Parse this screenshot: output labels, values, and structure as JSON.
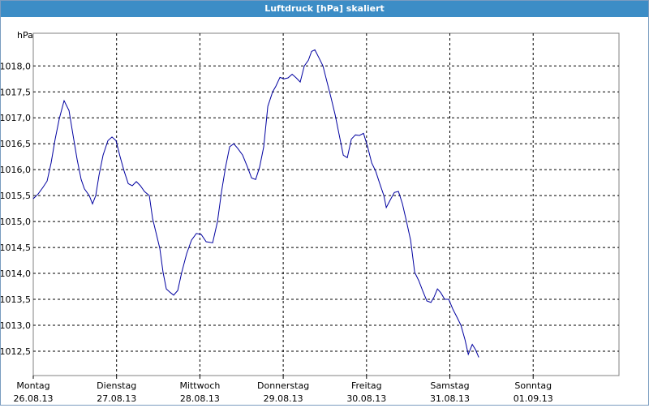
{
  "window_title": "Luftdruck [hPa] skaliert",
  "chart_data": {
    "type": "line",
    "ylabel": "hPa",
    "xlim": [
      0,
      7.03
    ],
    "ylim": [
      1012.03,
      1018.63
    ],
    "grid": true,
    "xticks": [
      {
        "value": 0,
        "label": "Montag",
        "sublabel": "26.08.13"
      },
      {
        "value": 1,
        "label": "Dienstag",
        "sublabel": "27.08.13"
      },
      {
        "value": 2,
        "label": "Mittwoch",
        "sublabel": "28.08.13"
      },
      {
        "value": 3,
        "label": "Donnerstag",
        "sublabel": "29.08.13"
      },
      {
        "value": 4,
        "label": "Freitag",
        "sublabel": "30.08.13"
      },
      {
        "value": 5,
        "label": "Samstag",
        "sublabel": "31.08.13"
      },
      {
        "value": 6,
        "label": "Sonntag",
        "sublabel": "01.09.13"
      }
    ],
    "yticks": [
      {
        "value": 1012.5,
        "label": "1012,5"
      },
      {
        "value": 1013,
        "label": "1013,0"
      },
      {
        "value": 1013.5,
        "label": "1013,5"
      },
      {
        "value": 1014,
        "label": "1014,0"
      },
      {
        "value": 1014.5,
        "label": "1014,5"
      },
      {
        "value": 1015,
        "label": "1015,0"
      },
      {
        "value": 1015.5,
        "label": "1015,5"
      },
      {
        "value": 1016,
        "label": "1016,0"
      },
      {
        "value": 1016.5,
        "label": "1016,5"
      },
      {
        "value": 1017,
        "label": "1017,0"
      },
      {
        "value": 1017.5,
        "label": "1017,5"
      },
      {
        "value": 1018,
        "label": "1018,0"
      }
    ],
    "color": "#0000a0",
    "x": [
      0,
      0.058,
      0.117,
      0.166,
      0.214,
      0.263,
      0.312,
      0.37,
      0.429,
      0.477,
      0.526,
      0.575,
      0.614,
      0.672,
      0.711,
      0.75,
      0.789,
      0.838,
      0.896,
      0.945,
      0.993,
      1.042,
      1.091,
      1.14,
      1.188,
      1.237,
      1.286,
      1.334,
      1.393,
      1.432,
      1.471,
      1.519,
      1.558,
      1.597,
      1.646,
      1.685,
      1.734,
      1.782,
      1.841,
      1.899,
      1.958,
      2.016,
      2.075,
      2.153,
      2.211,
      2.26,
      2.308,
      2.357,
      2.406,
      2.454,
      2.513,
      2.571,
      2.62,
      2.669,
      2.717,
      2.766,
      2.815,
      2.873,
      2.912,
      2.961,
      3.01,
      3.058,
      3.107,
      3.156,
      3.204,
      3.253,
      3.302,
      3.341,
      3.38,
      3.428,
      3.477,
      3.526,
      3.575,
      3.623,
      3.672,
      3.721,
      3.769,
      3.818,
      3.867,
      3.915,
      3.964,
      4.013,
      4.062,
      4.11,
      4.159,
      4.208,
      4.237,
      4.286,
      4.334,
      4.383,
      4.431,
      4.48,
      4.529,
      4.578,
      4.627,
      4.675,
      4.724,
      4.773,
      4.812,
      4.851,
      4.89,
      4.938,
      4.987,
      5.036,
      5.084,
      5.133,
      5.182,
      5.221,
      5.269,
      5.308,
      5.347
    ],
    "values": [
      1015.44,
      1015.53,
      1015.66,
      1015.78,
      1016.13,
      1016.59,
      1016.98,
      1017.33,
      1017.14,
      1016.67,
      1016.2,
      1015.81,
      1015.63,
      1015.5,
      1015.34,
      1015.5,
      1015.89,
      1016.28,
      1016.56,
      1016.63,
      1016.56,
      1016.25,
      1015.97,
      1015.73,
      1015.69,
      1015.77,
      1015.69,
      1015.58,
      1015.5,
      1015.06,
      1014.8,
      1014.48,
      1014.02,
      1013.7,
      1013.63,
      1013.58,
      1013.67,
      1014.02,
      1014.38,
      1014.64,
      1014.77,
      1014.75,
      1014.61,
      1014.59,
      1015.0,
      1015.58,
      1016.05,
      1016.44,
      1016.5,
      1016.41,
      1016.28,
      1016.05,
      1015.84,
      1015.81,
      1016.05,
      1016.44,
      1017.22,
      1017.5,
      1017.61,
      1017.78,
      1017.75,
      1017.77,
      1017.84,
      1017.77,
      1017.69,
      1018.0,
      1018.11,
      1018.28,
      1018.31,
      1018.16,
      1018.0,
      1017.69,
      1017.38,
      1017.06,
      1016.67,
      1016.28,
      1016.23,
      1016.59,
      1016.67,
      1016.66,
      1016.7,
      1016.44,
      1016.13,
      1015.97,
      1015.73,
      1015.5,
      1015.27,
      1015.42,
      1015.56,
      1015.58,
      1015.34,
      1015.0,
      1014.64,
      1014.02,
      1013.86,
      1013.66,
      1013.47,
      1013.44,
      1013.55,
      1013.7,
      1013.63,
      1013.5,
      1013.5,
      1013.31,
      1013.16,
      1013.0,
      1012.72,
      1012.44,
      1012.63,
      1012.53,
      1012.38
    ]
  }
}
